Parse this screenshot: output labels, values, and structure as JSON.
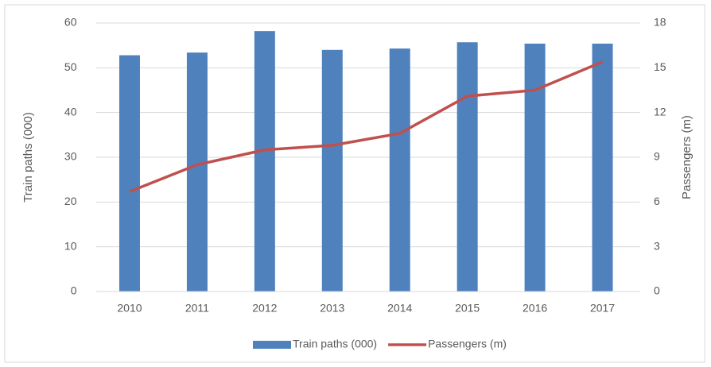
{
  "chart_data": {
    "type": "bar-line",
    "categories": [
      "2010",
      "2011",
      "2012",
      "2013",
      "2014",
      "2015",
      "2016",
      "2017"
    ],
    "series": [
      {
        "name": "Train paths (000)",
        "color": "#4f81bd",
        "type": "bar",
        "axis": "y",
        "values": [
          52.8,
          53.4,
          58.2,
          54.0,
          54.3,
          55.7,
          55.4,
          55.4
        ]
      },
      {
        "name": "Passengers (m)",
        "color": "#c0504d",
        "type": "line",
        "axis": "y2",
        "values": [
          6.7,
          8.5,
          9.5,
          9.8,
          10.6,
          13.1,
          13.5,
          15.4
        ]
      }
    ],
    "ylabel": "Train paths (000)",
    "y2label": "Passengers (m)",
    "ylim": [
      0,
      60
    ],
    "yticks": [
      0,
      10,
      20,
      30,
      40,
      50,
      60
    ],
    "y2lim": [
      0,
      18
    ],
    "y2ticks": [
      0,
      3,
      6,
      9,
      12,
      15,
      18
    ],
    "legend": "bottom"
  }
}
